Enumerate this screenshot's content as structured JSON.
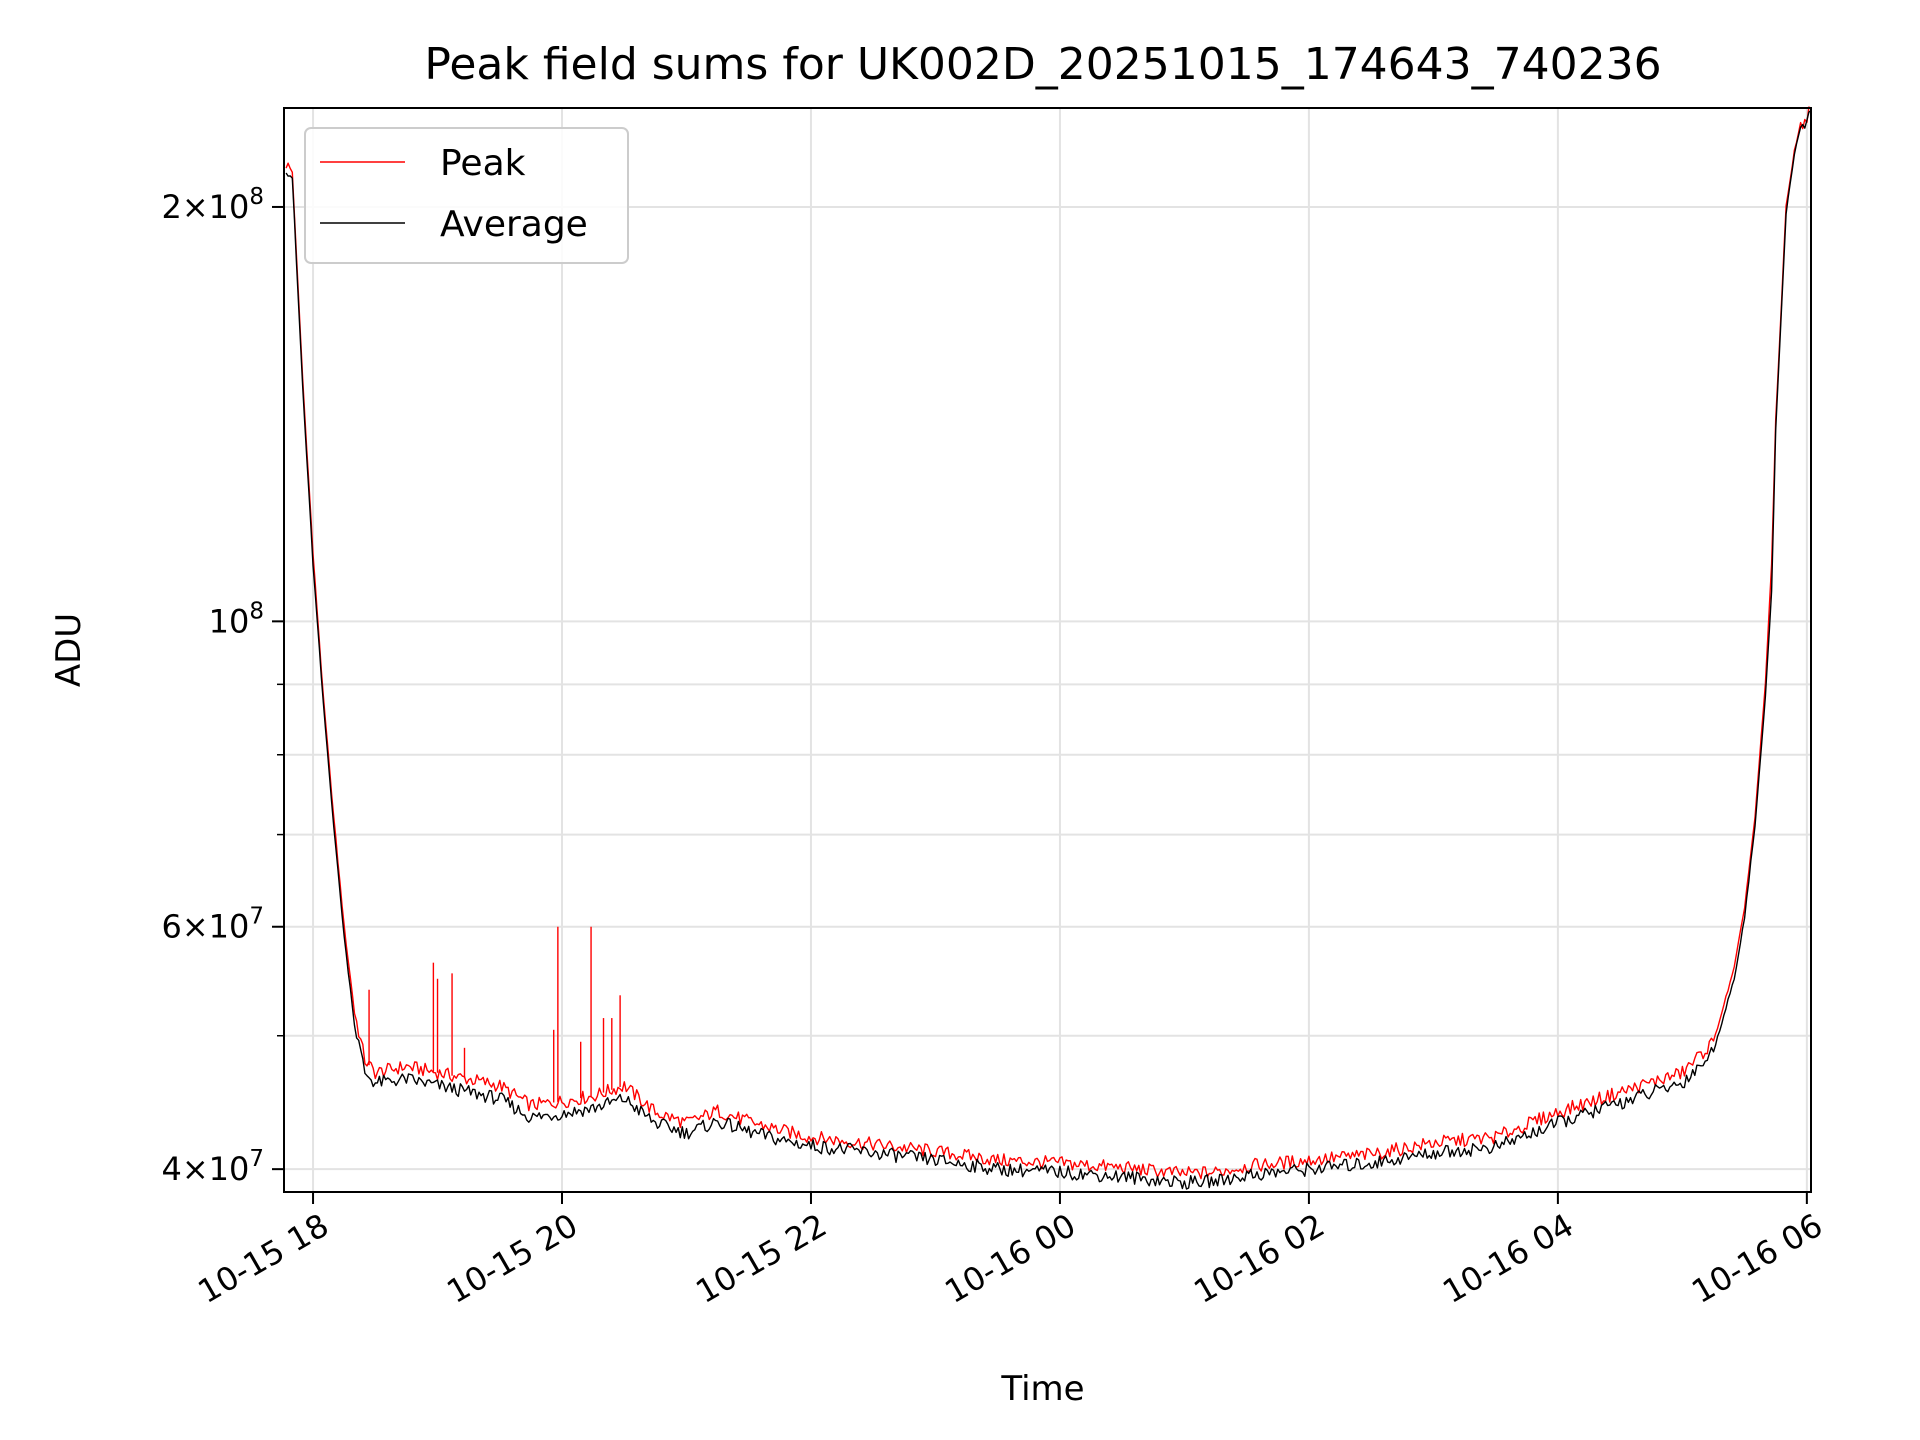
{
  "chart_data": {
    "type": "line",
    "title": "Peak field sums for UK002D_20251015_174643_740236",
    "xlabel": "Time",
    "ylabel": "ADU",
    "y_scale": "log",
    "grid": true,
    "legend_position": "top-left",
    "xlim": [
      "2025-10-15 17:46",
      "2025-10-16 06:02"
    ],
    "ylim": [
      38500000,
      236000000
    ],
    "x_ticks": [
      {
        "value": "2025-10-15 18:00",
        "label": "10-15 18"
      },
      {
        "value": "2025-10-15 20:00",
        "label": "10-15 20"
      },
      {
        "value": "2025-10-15 22:00",
        "label": "10-15 22"
      },
      {
        "value": "2025-10-16 00:00",
        "label": "10-16 00"
      },
      {
        "value": "2025-10-16 02:00",
        "label": "10-16 02"
      },
      {
        "value": "2025-10-16 04:00",
        "label": "10-16 04"
      },
      {
        "value": "2025-10-16 06:00",
        "label": "10-16 06"
      }
    ],
    "y_major_ticks": [
      {
        "value": 40000000,
        "label": "4×10",
        "exp": "7"
      },
      {
        "value": 60000000,
        "label": "6×10",
        "exp": "7"
      },
      {
        "value": 100000000,
        "label": "10",
        "exp": "8"
      },
      {
        "value": 200000000,
        "label": "2×10",
        "exp": "8"
      }
    ],
    "y_minor_ticks": [
      50000000,
      70000000,
      80000000,
      90000000
    ],
    "series": [
      {
        "name": "Peak",
        "color": "#ff0000",
        "points": [
          [
            "2025-10-15 17:47",
            215000000
          ],
          [
            "2025-10-15 17:50",
            212000000
          ],
          [
            "2025-10-15 17:55",
            150000000
          ],
          [
            "2025-10-15 18:00",
            112000000
          ],
          [
            "2025-10-15 18:05",
            88000000
          ],
          [
            "2025-10-15 18:10",
            72000000
          ],
          [
            "2025-10-15 18:15",
            60000000
          ],
          [
            "2025-10-15 18:20",
            52000000
          ],
          [
            "2025-10-15 18:25",
            48000000
          ],
          [
            "2025-10-15 18:30",
            47000000
          ],
          [
            "2025-10-15 18:45",
            47500000
          ],
          [
            "2025-10-15 19:00",
            47000000
          ],
          [
            "2025-10-15 19:15",
            46500000
          ],
          [
            "2025-10-15 19:30",
            46000000
          ],
          [
            "2025-10-15 19:45",
            44500000
          ],
          [
            "2025-10-15 20:00",
            44800000
          ],
          [
            "2025-10-15 20:15",
            45200000
          ],
          [
            "2025-10-15 20:30",
            46000000
          ],
          [
            "2025-10-15 20:45",
            44000000
          ],
          [
            "2025-10-15 21:00",
            43200000
          ],
          [
            "2025-10-15 21:15",
            44100000
          ],
          [
            "2025-10-15 21:30",
            43300000
          ],
          [
            "2025-10-15 21:45",
            42700000
          ],
          [
            "2025-10-15 22:00",
            42200000
          ],
          [
            "2025-10-15 22:30",
            41700000
          ],
          [
            "2025-10-15 23:00",
            41200000
          ],
          [
            "2025-10-15 23:30",
            40600000
          ],
          [
            "2025-10-16 00:00",
            40400000
          ],
          [
            "2025-10-16 00:30",
            40100000
          ],
          [
            "2025-10-16 01:00",
            39700000
          ],
          [
            "2025-10-16 01:15",
            39800000
          ],
          [
            "2025-10-16 01:30",
            40200000
          ],
          [
            "2025-10-16 02:00",
            40600000
          ],
          [
            "2025-10-16 02:30",
            41000000
          ],
          [
            "2025-10-16 03:00",
            41800000
          ],
          [
            "2025-10-16 03:30",
            42200000
          ],
          [
            "2025-10-16 04:00",
            44000000
          ],
          [
            "2025-10-16 04:30",
            45500000
          ],
          [
            "2025-10-16 05:00",
            47000000
          ],
          [
            "2025-10-16 05:15",
            49500000
          ],
          [
            "2025-10-16 05:25",
            56000000
          ],
          [
            "2025-10-16 05:30",
            62000000
          ],
          [
            "2025-10-16 05:35",
            72000000
          ],
          [
            "2025-10-16 05:40",
            90000000
          ],
          [
            "2025-10-16 05:43",
            110000000
          ],
          [
            "2025-10-16 05:45",
            140000000
          ],
          [
            "2025-10-16 05:50",
            200000000
          ],
          [
            "2025-10-16 05:55",
            225000000
          ],
          [
            "2025-10-16 06:02",
            236000000
          ]
        ],
        "spikes": [
          [
            "2025-10-15 18:27",
            54000000
          ],
          [
            "2025-10-15 18:58",
            56500000
          ],
          [
            "2025-10-15 19:00",
            55000000
          ],
          [
            "2025-10-15 19:07",
            55500000
          ],
          [
            "2025-10-15 19:13",
            49000000
          ],
          [
            "2025-10-15 19:56",
            50500000
          ],
          [
            "2025-10-15 19:58",
            60000000
          ],
          [
            "2025-10-15 20:09",
            49500000
          ],
          [
            "2025-10-15 20:14",
            60000000
          ],
          [
            "2025-10-15 20:20",
            51500000
          ],
          [
            "2025-10-15 20:24",
            51500000
          ],
          [
            "2025-10-15 20:28",
            53500000
          ]
        ]
      },
      {
        "name": "Average",
        "color": "#000000",
        "points": [
          [
            "2025-10-15 17:47",
            214000000
          ],
          [
            "2025-10-15 17:50",
            210000000
          ],
          [
            "2025-10-15 17:55",
            148000000
          ],
          [
            "2025-10-15 18:00",
            110000000
          ],
          [
            "2025-10-15 18:05",
            87000000
          ],
          [
            "2025-10-15 18:10",
            71000000
          ],
          [
            "2025-10-15 18:15",
            59000000
          ],
          [
            "2025-10-15 18:20",
            51000000
          ],
          [
            "2025-10-15 18:25",
            47000000
          ],
          [
            "2025-10-15 18:30",
            46200000
          ],
          [
            "2025-10-15 18:45",
            46500000
          ],
          [
            "2025-10-15 19:00",
            46000000
          ],
          [
            "2025-10-15 19:15",
            45500000
          ],
          [
            "2025-10-15 19:30",
            45000000
          ],
          [
            "2025-10-15 19:45",
            43600000
          ],
          [
            "2025-10-15 20:00",
            43900000
          ],
          [
            "2025-10-15 20:15",
            44300000
          ],
          [
            "2025-10-15 20:30",
            45000000
          ],
          [
            "2025-10-15 20:45",
            43200000
          ],
          [
            "2025-10-15 21:00",
            42500000
          ],
          [
            "2025-10-15 21:15",
            43300000
          ],
          [
            "2025-10-15 21:30",
            42600000
          ],
          [
            "2025-10-15 21:45",
            42000000
          ],
          [
            "2025-10-15 22:00",
            41600000
          ],
          [
            "2025-10-15 22:30",
            41100000
          ],
          [
            "2025-10-15 23:00",
            40600000
          ],
          [
            "2025-10-15 23:30",
            40000000
          ],
          [
            "2025-10-16 00:00",
            39800000
          ],
          [
            "2025-10-16 00:30",
            39500000
          ],
          [
            "2025-10-16 01:00",
            39100000
          ],
          [
            "2025-10-16 01:15",
            39200000
          ],
          [
            "2025-10-16 01:30",
            39600000
          ],
          [
            "2025-10-16 02:00",
            40000000
          ],
          [
            "2025-10-16 02:30",
            40400000
          ],
          [
            "2025-10-16 03:00",
            41100000
          ],
          [
            "2025-10-16 03:30",
            41500000
          ],
          [
            "2025-10-16 04:00",
            43200000
          ],
          [
            "2025-10-16 04:30",
            44700000
          ],
          [
            "2025-10-16 05:00",
            46200000
          ],
          [
            "2025-10-16 05:15",
            48700000
          ],
          [
            "2025-10-16 05:25",
            55000000
          ],
          [
            "2025-10-16 05:30",
            61000000
          ],
          [
            "2025-10-16 05:35",
            71000000
          ],
          [
            "2025-10-16 05:40",
            88000000
          ],
          [
            "2025-10-16 05:43",
            105000000
          ],
          [
            "2025-10-16 05:45",
            138000000
          ],
          [
            "2025-10-16 05:50",
            198000000
          ],
          [
            "2025-10-16 05:55",
            224000000
          ],
          [
            "2025-10-16 06:02",
            235000000
          ]
        ]
      }
    ]
  }
}
